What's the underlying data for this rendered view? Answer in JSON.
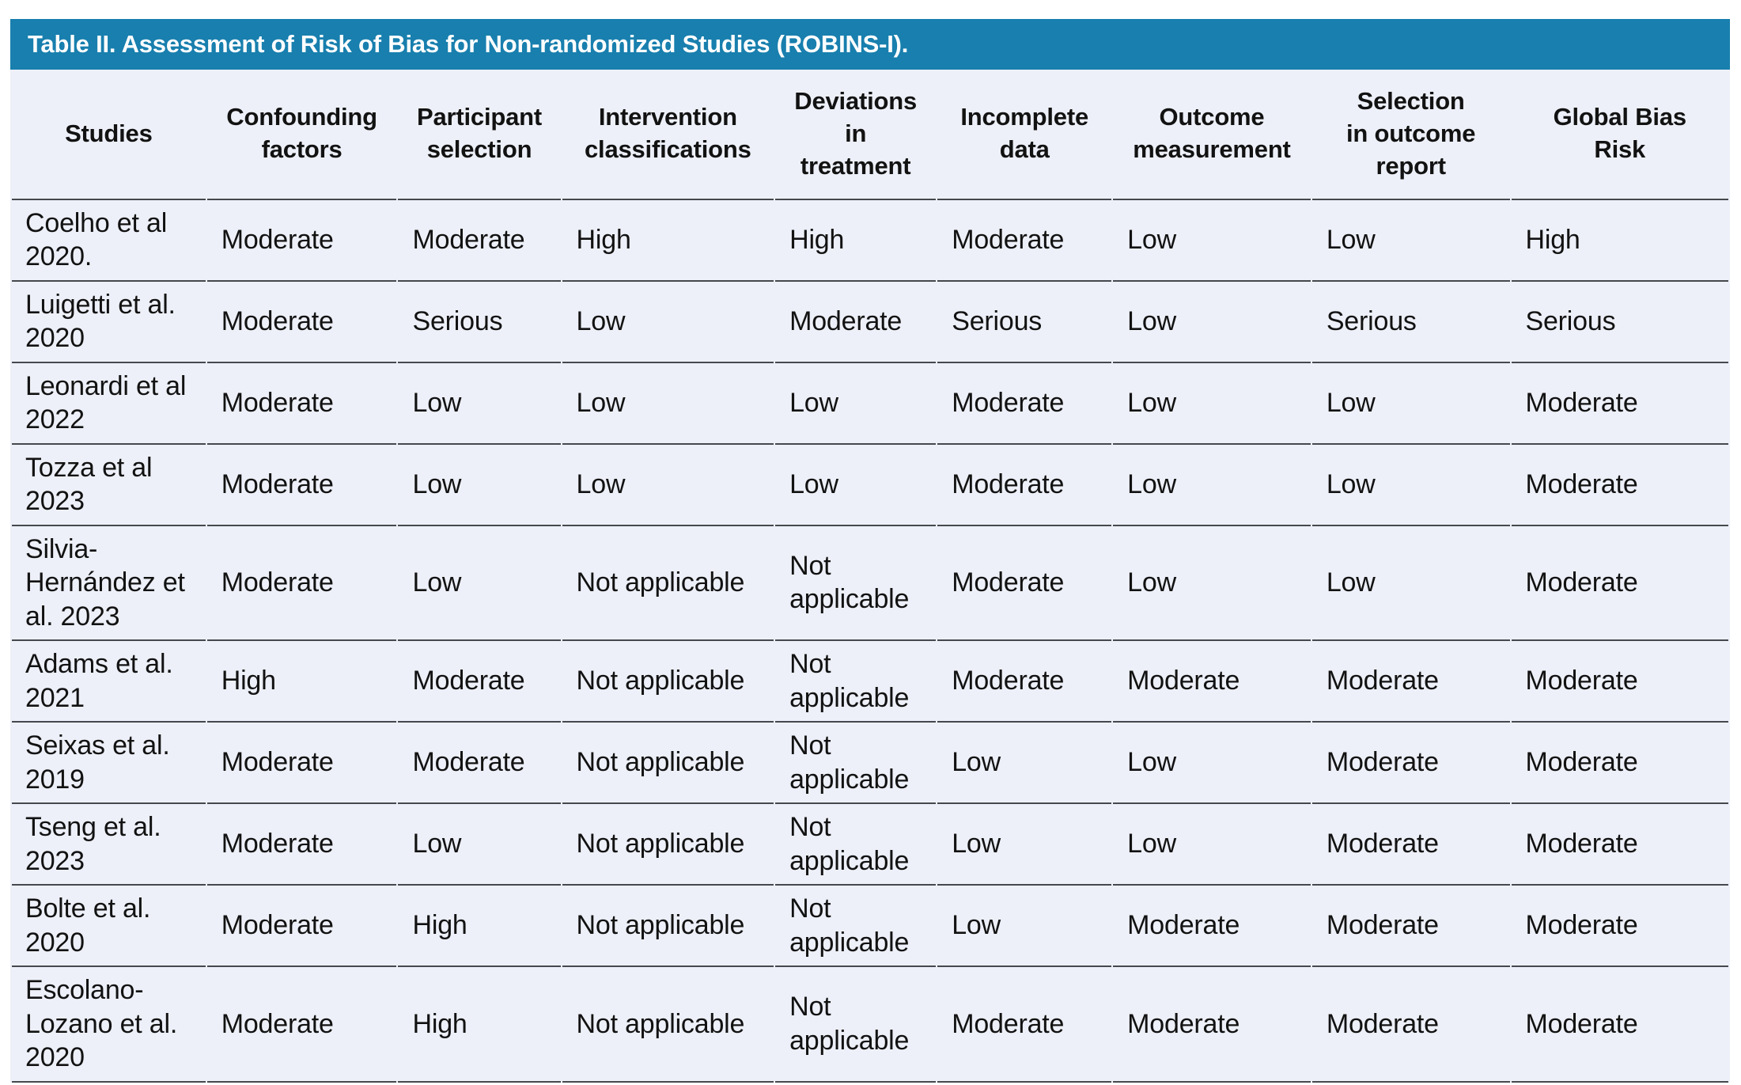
{
  "title": "Table II. Assessment of Risk of Bias for Non-randomized Studies (ROBINS-I).",
  "colors": {
    "accent_blue": "#187fae",
    "row_background": "#edf0f8",
    "border": "#45494e",
    "title_text": "#ffffff",
    "body_text": "#121212"
  },
  "table": {
    "columns": [
      "Studies",
      "Confounding\nfactors",
      "Participant\nselection",
      "Intervention\nclassifications",
      "Deviations\nin\ntreatment",
      "Incomplete\ndata",
      "Outcome\nmeasurement",
      "Selection\nin outcome\nreport",
      "Global Bias\nRisk"
    ],
    "rows": [
      {
        "study": "Coelho et al\n2020.",
        "values": [
          "Moderate",
          "Moderate",
          "High",
          "High",
          "Moderate",
          "Low",
          "Low",
          "High"
        ]
      },
      {
        "study": "Luigetti et al.\n2020",
        "values": [
          "Moderate",
          "Serious",
          "Low",
          "Moderate",
          "Serious",
          "Low",
          "Serious",
          "Serious"
        ]
      },
      {
        "study": "Leonardi et al\n2022",
        "values": [
          "Moderate",
          "Low",
          "Low",
          "Low",
          "Moderate",
          "Low",
          "Low",
          "Moderate"
        ]
      },
      {
        "study": "Tozza et al\n2023",
        "values": [
          "Moderate",
          "Low",
          "Low",
          "Low",
          "Moderate",
          "Low",
          "Low",
          "Moderate"
        ]
      },
      {
        "study": "Silvia-\nHernández et\nal. 2023",
        "values": [
          "Moderate",
          "Low",
          "Not applicable",
          "Not applicable",
          "Moderate",
          "Low",
          "Low",
          "Moderate"
        ]
      },
      {
        "study": "Adams et al.\n2021",
        "values": [
          "High",
          "Moderate",
          "Not applicable",
          "Not applicable",
          "Moderate",
          "Moderate",
          "Moderate",
          "Moderate"
        ]
      },
      {
        "study": "Seixas et al.\n2019",
        "values": [
          "Moderate",
          "Moderate",
          "Not applicable",
          "Not applicable",
          "Low",
          "Low",
          "Moderate",
          "Moderate"
        ]
      },
      {
        "study": "Tseng et al.\n2023",
        "values": [
          "Moderate",
          "Low",
          "Not applicable",
          "Not applicable",
          "Low",
          "Low",
          "Moderate",
          "Moderate"
        ]
      },
      {
        "study": "Bolte et al.\n2020",
        "values": [
          "Moderate",
          "High",
          "Not applicable",
          "Not applicable",
          "Low",
          "Moderate",
          "Moderate",
          "Moderate"
        ]
      },
      {
        "study": "Escolano-\nLozano et al.\n2020",
        "values": [
          "Moderate",
          "High",
          "Not applicable",
          "Not applicable",
          "Moderate",
          "Moderate",
          "Moderate",
          "Moderate"
        ]
      }
    ]
  },
  "chart_data": {
    "type": "table",
    "title": "Table II. Assessment of Risk of Bias for Non-randomized Studies (ROBINS-I).",
    "columns": [
      "Studies",
      "Confounding factors",
      "Participant selection",
      "Intervention classifications",
      "Deviations in treatment",
      "Incomplete data",
      "Outcome measurement",
      "Selection in outcome report",
      "Global Bias Risk"
    ],
    "rows": [
      [
        "Coelho et al 2020.",
        "Moderate",
        "Moderate",
        "High",
        "High",
        "Moderate",
        "Low",
        "Low",
        "High"
      ],
      [
        "Luigetti et al. 2020",
        "Moderate",
        "Serious",
        "Low",
        "Moderate",
        "Serious",
        "Low",
        "Serious",
        "Serious"
      ],
      [
        "Leonardi et al 2022",
        "Moderate",
        "Low",
        "Low",
        "Low",
        "Moderate",
        "Low",
        "Low",
        "Moderate"
      ],
      [
        "Tozza et al 2023",
        "Moderate",
        "Low",
        "Low",
        "Low",
        "Moderate",
        "Low",
        "Low",
        "Moderate"
      ],
      [
        "Silvia-Hernández et al. 2023",
        "Moderate",
        "Low",
        "Not applicable",
        "Not applicable",
        "Moderate",
        "Low",
        "Low",
        "Moderate"
      ],
      [
        "Adams et al. 2021",
        "High",
        "Moderate",
        "Not applicable",
        "Not applicable",
        "Moderate",
        "Moderate",
        "Moderate",
        "Moderate"
      ],
      [
        "Seixas et al. 2019",
        "Moderate",
        "Moderate",
        "Not applicable",
        "Not applicable",
        "Low",
        "Low",
        "Moderate",
        "Moderate"
      ],
      [
        "Tseng et al. 2023",
        "Moderate",
        "Low",
        "Not applicable",
        "Not applicable",
        "Low",
        "Low",
        "Moderate",
        "Moderate"
      ],
      [
        "Bolte et al. 2020",
        "Moderate",
        "High",
        "Not applicable",
        "Not applicable",
        "Low",
        "Moderate",
        "Moderate",
        "Moderate"
      ],
      [
        "Escolano-Lozano et al. 2020",
        "Moderate",
        "High",
        "Not applicable",
        "Not applicable",
        "Moderate",
        "Moderate",
        "Moderate",
        "Moderate"
      ]
    ]
  }
}
